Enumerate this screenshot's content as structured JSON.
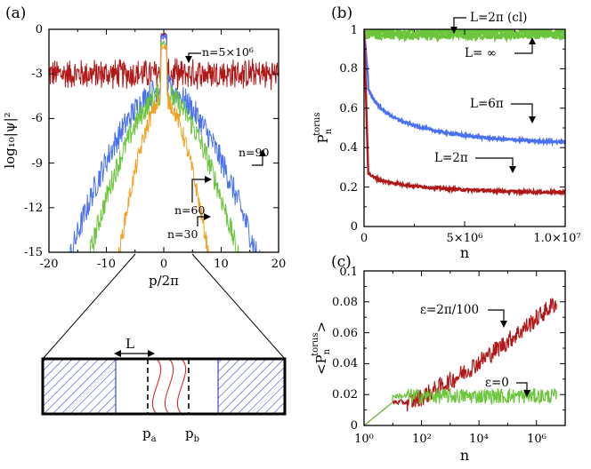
{
  "colors": {
    "red": "#b01818",
    "blue": "#4a72f0",
    "green": "#6cc63c",
    "orange": "#f5a020",
    "hatch": "#3a4ac8",
    "ink": "#000000"
  },
  "chart_data": [
    {
      "id": "a",
      "type": "line",
      "panel_label": "(a)",
      "xlabel": "p/2π",
      "ylabel": "log₁₀|ψ|²",
      "xlim": [
        -20,
        20
      ],
      "ylim": [
        -15,
        0
      ],
      "xticks": [
        "-20",
        "-10",
        "0",
        "10",
        "20"
      ],
      "yticks": [
        "0",
        "-3",
        "-6",
        "-9",
        "-12",
        "-15"
      ],
      "series": [
        {
          "name": "n=5×10⁶",
          "color": "red",
          "shape": "flat",
          "level": -3,
          "noise": 0.7,
          "peak": -0.5
        },
        {
          "name": "n=90",
          "color": "blue",
          "shape": "spread",
          "halfwidth": 16,
          "noise": 0.9,
          "peak": -0.7
        },
        {
          "name": "n=60",
          "color": "green",
          "shape": "spread",
          "halfwidth": 13,
          "noise": 0.8,
          "peak": -1.1
        },
        {
          "name": "n=30",
          "color": "orange",
          "shape": "spread",
          "halfwidth": 8,
          "noise": 0.6,
          "peak": -1.4
        }
      ],
      "annotations": [
        {
          "text": "n=5×10⁶"
        },
        {
          "text": "n=90"
        },
        {
          "text": "n=60"
        },
        {
          "text": "n=30"
        }
      ]
    },
    {
      "id": "b",
      "type": "line",
      "panel_label": "(b)",
      "xlabel": "n",
      "ylabel": "P",
      "ylabel_sub": "n",
      "ylabel_sup": "torus",
      "xlim": [
        0,
        10000000
      ],
      "ylim": [
        0,
        1
      ],
      "xticks": [
        "0",
        "5×10⁶",
        "1.0×10⁷"
      ],
      "yticks": [
        "0",
        "0.2",
        "0.4",
        "0.6",
        "0.8",
        "1"
      ],
      "series": [
        {
          "name": "L=2π (cl)",
          "color": "green",
          "final": 0.97
        },
        {
          "name": "L=∞",
          "color": "green",
          "final": 0.99
        },
        {
          "name": "L=6π",
          "color": "blue",
          "start": 0.75,
          "final": 0.42
        },
        {
          "name": "L=2π",
          "color": "red",
          "start": 0.3,
          "final": 0.17
        }
      ],
      "annotations": [
        {
          "text": "L=2π (cl)"
        },
        {
          "text": "L= ∞"
        },
        {
          "text": "L=6π"
        },
        {
          "text": "L=2π"
        }
      ]
    },
    {
      "id": "c",
      "type": "line",
      "panel_label": "(c)",
      "xlabel": "n",
      "ylabel": "<P",
      "ylabel_sub": "n",
      "ylabel_sup": "torus",
      "ylabel_end": ">",
      "xscale": "log",
      "xlim": [
        1,
        10000000
      ],
      "ylim": [
        0,
        0.1
      ],
      "xticks": [
        "10⁰",
        "10²",
        "10⁴",
        "10⁶"
      ],
      "yticks": [
        "0",
        "0.02",
        "0.04",
        "0.06",
        "0.08",
        "0.1"
      ],
      "series": [
        {
          "name": "ε=2π/100",
          "color": "red",
          "final": 0.08
        },
        {
          "name": "ε=0",
          "color": "green",
          "final": 0.02
        }
      ],
      "annotations": [
        {
          "text": "ε=2π/100"
        },
        {
          "text": "ε=0"
        }
      ]
    }
  ],
  "diagram": {
    "L_label": "L",
    "pa_label": "p",
    "pa_sub": "a",
    "pb_label": "p",
    "pb_sub": "b"
  }
}
